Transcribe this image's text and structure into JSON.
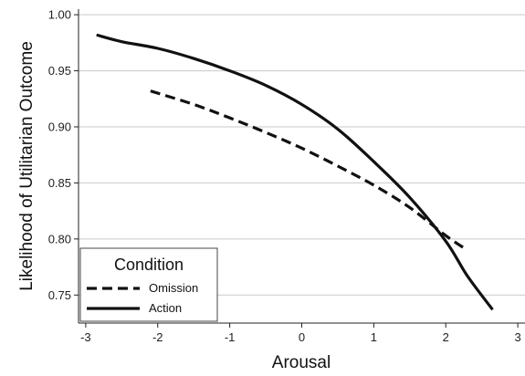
{
  "chart_data": {
    "type": "line",
    "title": "",
    "xlabel": "Arousal",
    "ylabel": "Likelihood of Utilitarian Outcome",
    "xlim": [
      -3.1,
      3.1
    ],
    "ylim": [
      0.725,
      1.005
    ],
    "x_ticks": [
      -3,
      -2,
      -1,
      0,
      1,
      2,
      3
    ],
    "x_tick_labels": [
      "-3",
      "-2",
      "-1",
      "0",
      "1",
      "2",
      "3"
    ],
    "y_ticks": [
      0.75,
      0.8,
      0.85,
      0.9,
      0.95,
      1.0
    ],
    "y_tick_labels": [
      "0.75",
      "0.80",
      "0.85",
      "0.90",
      "0.95",
      "1.00"
    ],
    "grid": "horizontal",
    "legend": {
      "title": "Condition",
      "position": "bottom-left"
    },
    "series": [
      {
        "name": "Omission",
        "style": "dashed",
        "color": "#111111",
        "x": [
          -2.1,
          -1.5,
          -1.0,
          -0.5,
          0.0,
          0.5,
          1.0,
          1.5,
          2.0,
          2.3
        ],
        "y": [
          0.932,
          0.92,
          0.908,
          0.895,
          0.881,
          0.865,
          0.848,
          0.828,
          0.803,
          0.79
        ]
      },
      {
        "name": "Action",
        "style": "solid",
        "color": "#111111",
        "x": [
          -2.85,
          -2.5,
          -2.0,
          -1.5,
          -1.0,
          -0.5,
          0.0,
          0.5,
          1.0,
          1.5,
          2.0,
          2.3,
          2.65
        ],
        "y": [
          0.982,
          0.976,
          0.97,
          0.961,
          0.95,
          0.937,
          0.92,
          0.898,
          0.869,
          0.837,
          0.798,
          0.767,
          0.737
        ]
      }
    ]
  }
}
